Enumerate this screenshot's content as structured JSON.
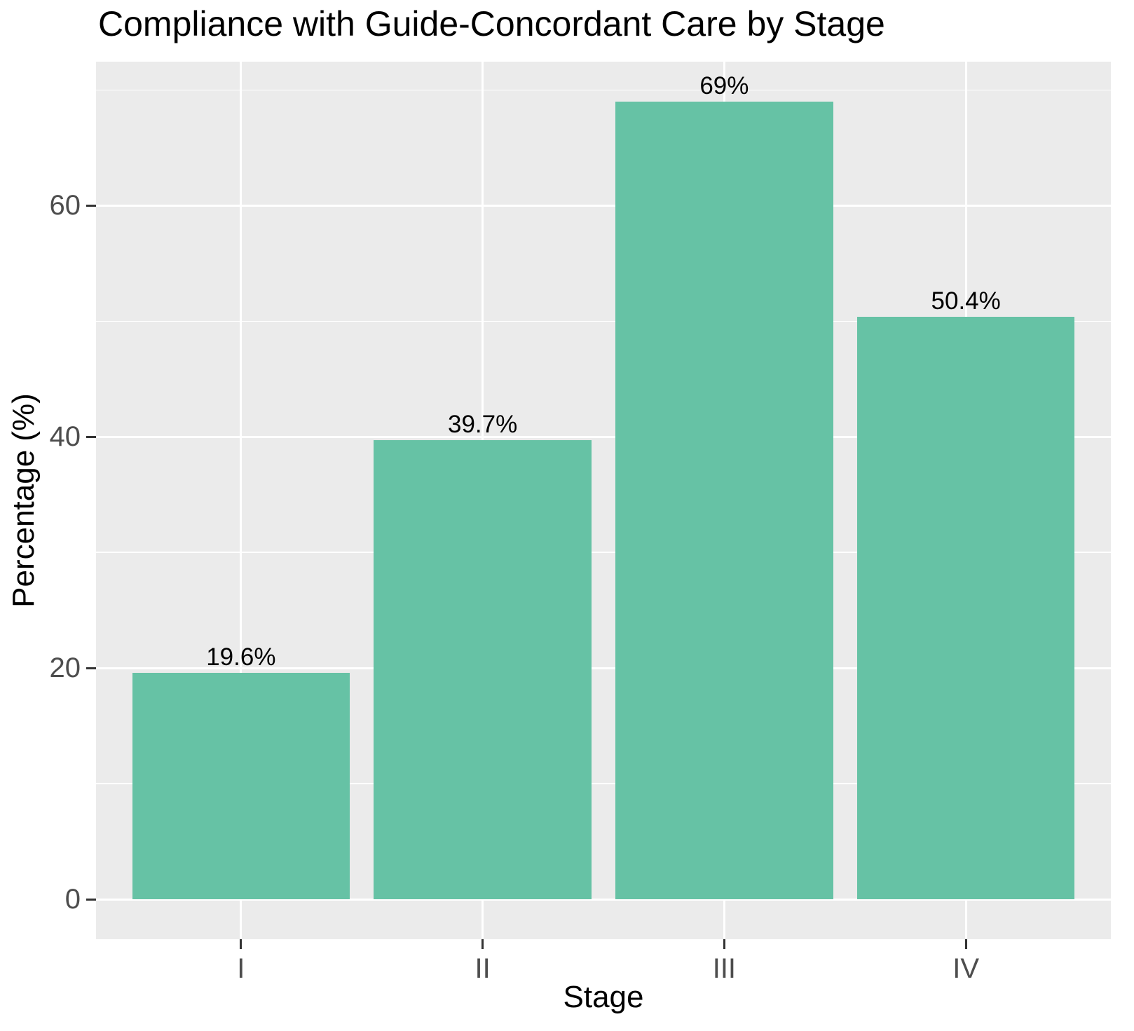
{
  "chart_data": {
    "type": "bar",
    "title": "Compliance with Guide-Concordant Care by Stage",
    "xlabel": "Stage",
    "ylabel": "Percentage (%)",
    "categories": [
      "I",
      "II",
      "III",
      "IV"
    ],
    "values": [
      19.6,
      39.7,
      69,
      50.4
    ],
    "bar_labels": [
      "19.6%",
      "39.7%",
      "69%",
      "50.4%"
    ],
    "y_major_ticks": [
      0,
      20,
      40,
      60
    ],
    "y_major_tick_labels": [
      "0",
      "20",
      "40",
      "60"
    ],
    "y_minor_ticks": [
      10,
      30,
      50,
      70
    ],
    "ylim": [
      -3.45,
      72.45
    ],
    "x_domain": [
      0.4,
      4.6
    ],
    "bar_width_units": 0.9,
    "grid": true,
    "legend_position": "none",
    "colors": {
      "bar_fill": "#66C2A5",
      "panel_bg": "#EBEBEB",
      "gridline": "#FFFFFF",
      "axis_text": "#4D4D4D",
      "tick_mark": "#333333",
      "title_text": "#000000",
      "bar_label_text": "#000000",
      "background": "#FFFFFF"
    }
  }
}
